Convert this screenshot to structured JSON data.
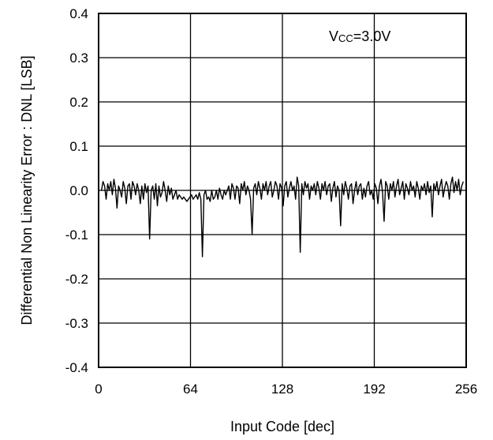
{
  "chart_data": {
    "type": "line",
    "title": "",
    "xlabel": "Input Code [dec]",
    "ylabel": "Differential Non Linearity Error : DNL [LSB]",
    "xlim": [
      0,
      256
    ],
    "ylim": [
      -0.4,
      0.4
    ],
    "xticks": [
      0,
      64,
      128,
      192,
      256
    ],
    "xtick_labels": [
      "0",
      "64",
      "128",
      "192",
      "256"
    ],
    "yticks": [
      0.4,
      0.3,
      0.2,
      0.1,
      0.0,
      -0.1,
      -0.2,
      -0.3,
      -0.4
    ],
    "ytick_labels": [
      "0.4",
      "0.3",
      "0.2",
      "0.1",
      "0.0",
      "-0.1",
      "-0.2",
      "-0.3",
      "-0.4"
    ],
    "grid": true,
    "legend": null,
    "annotation": {
      "main": "V",
      "sub": "CC",
      "rest": "=3.0V"
    },
    "series": [
      {
        "values": [
          0.0,
          0.02,
          0.01,
          -0.02,
          0.015,
          0.0,
          0.02,
          -0.01,
          0.025,
          0.005,
          -0.04,
          0.01,
          0.0,
          -0.015,
          0.02,
          0.005,
          -0.03,
          0.01,
          0.015,
          -0.02,
          0.02,
          0.01,
          -0.01,
          0.015,
          0.0,
          -0.03,
          0.01,
          -0.02,
          0.015,
          -0.005,
          0.01,
          -0.11,
          0.0,
          0.01,
          -0.02,
          0.015,
          -0.035,
          0.01,
          -0.015,
          -0.005,
          0.02,
          0.0,
          -0.025,
          0.01,
          -0.01,
          0.005,
          -0.02,
          -0.01,
          0.0,
          -0.02,
          -0.01,
          -0.015,
          -0.02,
          -0.015,
          -0.02,
          -0.025,
          -0.02,
          -0.015,
          -0.01,
          -0.02,
          -0.015,
          -0.01,
          -0.02,
          -0.005,
          -0.02,
          -0.15,
          -0.01,
          0.0,
          -0.02,
          -0.015,
          -0.025,
          0.0,
          -0.02,
          -0.015,
          0.0,
          -0.02,
          0.005,
          -0.01,
          -0.02,
          0.0,
          -0.01,
          0.0,
          0.01,
          -0.02,
          0.015,
          0.005,
          -0.02,
          0.01,
          0.005,
          -0.03,
          0.015,
          0.0,
          0.02,
          -0.01,
          0.01,
          0.0,
          -0.02,
          -0.1,
          0.005,
          0.015,
          -0.01,
          0.02,
          0.005,
          -0.02,
          0.015,
          0.0,
          0.02,
          -0.01,
          0.01,
          0.02,
          -0.015,
          0.0,
          0.02,
          0.01,
          -0.02,
          0.015,
          0.005,
          -0.035,
          0.01,
          0.02,
          -0.015,
          0.005,
          0.02,
          0.0,
          0.01,
          -0.02,
          0.03,
          0.01,
          -0.14,
          0.015,
          -0.01,
          0.02,
          0.005,
          0.015,
          -0.02,
          0.01,
          0.0,
          0.015,
          -0.01,
          0.02,
          0.005,
          -0.02,
          0.015,
          0.0,
          0.02,
          -0.01,
          0.01,
          0.015,
          -0.025,
          0.005,
          0.02,
          -0.015,
          0.01,
          0.0,
          -0.08,
          0.015,
          -0.01,
          0.02,
          0.005,
          -0.02,
          0.01,
          0.015,
          -0.03,
          0.0,
          0.02,
          -0.01,
          0.01,
          0.015,
          -0.02,
          0.005,
          -0.015,
          0.01,
          0.02,
          -0.01,
          0.0,
          -0.02,
          0.015,
          0.005,
          -0.03,
          0.01,
          0.025,
          -0.005,
          -0.07,
          0.02,
          0.01,
          -0.02,
          0.015,
          0.0,
          0.02,
          -0.015,
          0.01,
          0.025,
          -0.01,
          0.005,
          0.02,
          -0.02,
          0.015,
          0.005,
          -0.01,
          0.02,
          0.0,
          0.01,
          -0.015,
          0.02,
          0.005,
          -0.02,
          0.01,
          0.0,
          0.015,
          -0.01,
          0.02,
          -0.005,
          0.01,
          -0.06,
          0.015,
          0.0,
          0.02,
          -0.01,
          0.01,
          0.025,
          -0.015,
          0.005,
          0.02,
          0.01,
          -0.02,
          0.015,
          0.03,
          -0.005,
          0.02,
          0.0,
          0.025,
          -0.01,
          0.01,
          0.02
        ]
      }
    ]
  }
}
